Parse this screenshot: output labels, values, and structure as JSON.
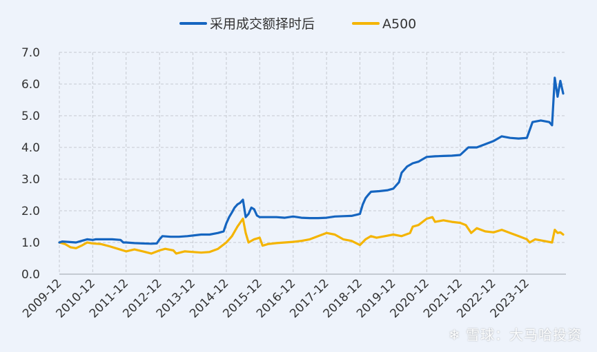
{
  "chart_data": {
    "type": "line",
    "title": "",
    "xlabel": "",
    "ylabel": "",
    "ylim": [
      0,
      7
    ],
    "yticks": [
      "0.0",
      "1.0",
      "2.0",
      "3.0",
      "4.0",
      "5.0",
      "6.0",
      "7.0"
    ],
    "x_tick_labels": [
      "2009-12",
      "2010-12",
      "2011-12",
      "2012-12",
      "2013-12",
      "2014-12",
      "2015-12",
      "2016-12",
      "2017-12",
      "2018-12",
      "2019-12",
      "2020-12",
      "2021-12",
      "2022-12",
      "2023-12"
    ],
    "grid": true,
    "legend_position": "top-center",
    "series": [
      {
        "name": "采用成交额择时后",
        "color": "#1565c0",
        "points": [
          [
            "2009-12",
            1.0
          ],
          [
            "2010-01",
            1.03
          ],
          [
            "2010-03",
            1.02
          ],
          [
            "2010-06",
            1.0
          ],
          [
            "2010-08",
            1.05
          ],
          [
            "2010-10",
            1.1
          ],
          [
            "2010-12",
            1.08
          ],
          [
            "2011-01",
            1.1
          ],
          [
            "2011-04",
            1.1
          ],
          [
            "2011-07",
            1.1
          ],
          [
            "2011-10",
            1.08
          ],
          [
            "2011-11",
            1.0
          ],
          [
            "2011-12",
            1.0
          ],
          [
            "2012-03",
            0.98
          ],
          [
            "2012-06",
            0.97
          ],
          [
            "2012-09",
            0.96
          ],
          [
            "2012-11",
            0.97
          ],
          [
            "2012-12",
            1.1
          ],
          [
            "2013-01",
            1.2
          ],
          [
            "2013-04",
            1.18
          ],
          [
            "2013-07",
            1.18
          ],
          [
            "2013-10",
            1.2
          ],
          [
            "2013-12",
            1.22
          ],
          [
            "2014-03",
            1.25
          ],
          [
            "2014-06",
            1.25
          ],
          [
            "2014-09",
            1.3
          ],
          [
            "2014-11",
            1.35
          ],
          [
            "2014-12",
            1.6
          ],
          [
            "2015-01",
            1.8
          ],
          [
            "2015-02",
            1.95
          ],
          [
            "2015-03",
            2.1
          ],
          [
            "2015-04",
            2.2
          ],
          [
            "2015-05",
            2.25
          ],
          [
            "2015-06",
            2.35
          ],
          [
            "2015-07",
            1.8
          ],
          [
            "2015-08",
            1.9
          ],
          [
            "2015-09",
            2.1
          ],
          [
            "2015-10",
            2.05
          ],
          [
            "2015-11",
            1.85
          ],
          [
            "2015-12",
            1.8
          ],
          [
            "2016-03",
            1.8
          ],
          [
            "2016-06",
            1.8
          ],
          [
            "2016-09",
            1.78
          ],
          [
            "2016-12",
            1.82
          ],
          [
            "2017-03",
            1.78
          ],
          [
            "2017-06",
            1.77
          ],
          [
            "2017-09",
            1.77
          ],
          [
            "2017-12",
            1.78
          ],
          [
            "2018-03",
            1.82
          ],
          [
            "2018-06",
            1.83
          ],
          [
            "2018-09",
            1.84
          ],
          [
            "2018-12",
            1.9
          ],
          [
            "2019-01",
            2.2
          ],
          [
            "2019-02",
            2.4
          ],
          [
            "2019-03",
            2.5
          ],
          [
            "2019-04",
            2.6
          ],
          [
            "2019-07",
            2.62
          ],
          [
            "2019-10",
            2.65
          ],
          [
            "2019-12",
            2.7
          ],
          [
            "2020-01",
            2.8
          ],
          [
            "2020-02",
            2.9
          ],
          [
            "2020-03",
            3.2
          ],
          [
            "2020-05",
            3.4
          ],
          [
            "2020-07",
            3.5
          ],
          [
            "2020-09",
            3.55
          ],
          [
            "2020-10",
            3.6
          ],
          [
            "2020-12",
            3.7
          ],
          [
            "2021-03",
            3.72
          ],
          [
            "2021-06",
            3.73
          ],
          [
            "2021-09",
            3.74
          ],
          [
            "2021-12",
            3.76
          ],
          [
            "2022-03",
            4.0
          ],
          [
            "2022-06",
            4.0
          ],
          [
            "2022-09",
            4.1
          ],
          [
            "2022-12",
            4.2
          ],
          [
            "2023-03",
            4.35
          ],
          [
            "2023-06",
            4.3
          ],
          [
            "2023-09",
            4.28
          ],
          [
            "2023-12",
            4.3
          ],
          [
            "2024-02",
            4.8
          ],
          [
            "2024-05",
            4.85
          ],
          [
            "2024-08",
            4.8
          ],
          [
            "2024-09",
            4.7
          ],
          [
            "2024-10",
            6.2
          ],
          [
            "2024-11",
            5.6
          ],
          [
            "2024-12",
            6.1
          ],
          [
            "2025-01",
            5.7
          ]
        ]
      },
      {
        "name": "A500",
        "color": "#f4b400",
        "points": [
          [
            "2009-12",
            1.0
          ],
          [
            "2010-02",
            0.95
          ],
          [
            "2010-04",
            0.85
          ],
          [
            "2010-06",
            0.82
          ],
          [
            "2010-08",
            0.9
          ],
          [
            "2010-10",
            1.0
          ],
          [
            "2010-12",
            0.97
          ],
          [
            "2011-03",
            0.95
          ],
          [
            "2011-06",
            0.88
          ],
          [
            "2011-09",
            0.8
          ],
          [
            "2011-12",
            0.72
          ],
          [
            "2012-03",
            0.78
          ],
          [
            "2012-06",
            0.72
          ],
          [
            "2012-09",
            0.65
          ],
          [
            "2012-12",
            0.75
          ],
          [
            "2013-02",
            0.8
          ],
          [
            "2013-05",
            0.75
          ],
          [
            "2013-06",
            0.65
          ],
          [
            "2013-09",
            0.72
          ],
          [
            "2013-12",
            0.7
          ],
          [
            "2014-03",
            0.68
          ],
          [
            "2014-06",
            0.7
          ],
          [
            "2014-09",
            0.8
          ],
          [
            "2014-12",
            1.0
          ],
          [
            "2015-02",
            1.2
          ],
          [
            "2015-04",
            1.5
          ],
          [
            "2015-06",
            1.75
          ],
          [
            "2015-07",
            1.3
          ],
          [
            "2015-08",
            1.0
          ],
          [
            "2015-10",
            1.1
          ],
          [
            "2015-12",
            1.15
          ],
          [
            "2016-01",
            0.9
          ],
          [
            "2016-03",
            0.95
          ],
          [
            "2016-06",
            0.98
          ],
          [
            "2016-09",
            1.0
          ],
          [
            "2016-12",
            1.02
          ],
          [
            "2017-03",
            1.05
          ],
          [
            "2017-06",
            1.1
          ],
          [
            "2017-09",
            1.2
          ],
          [
            "2017-12",
            1.3
          ],
          [
            "2018-03",
            1.25
          ],
          [
            "2018-06",
            1.1
          ],
          [
            "2018-09",
            1.05
          ],
          [
            "2018-12",
            0.92
          ],
          [
            "2019-02",
            1.1
          ],
          [
            "2019-04",
            1.2
          ],
          [
            "2019-06",
            1.15
          ],
          [
            "2019-09",
            1.2
          ],
          [
            "2019-12",
            1.25
          ],
          [
            "2020-03",
            1.2
          ],
          [
            "2020-06",
            1.3
          ],
          [
            "2020-07",
            1.5
          ],
          [
            "2020-09",
            1.55
          ],
          [
            "2020-12",
            1.75
          ],
          [
            "2021-02",
            1.8
          ],
          [
            "2021-03",
            1.65
          ],
          [
            "2021-06",
            1.7
          ],
          [
            "2021-09",
            1.65
          ],
          [
            "2021-12",
            1.62
          ],
          [
            "2022-02",
            1.55
          ],
          [
            "2022-04",
            1.3
          ],
          [
            "2022-06",
            1.45
          ],
          [
            "2022-09",
            1.35
          ],
          [
            "2022-12",
            1.32
          ],
          [
            "2023-03",
            1.4
          ],
          [
            "2023-06",
            1.3
          ],
          [
            "2023-09",
            1.2
          ],
          [
            "2023-12",
            1.1
          ],
          [
            "2024-01",
            1.0
          ],
          [
            "2024-03",
            1.1
          ],
          [
            "2024-06",
            1.05
          ],
          [
            "2024-09",
            1.0
          ],
          [
            "2024-10",
            1.4
          ],
          [
            "2024-11",
            1.3
          ],
          [
            "2024-12",
            1.32
          ],
          [
            "2025-01",
            1.25
          ]
        ]
      }
    ]
  },
  "watermark": "雪球：大马哈投资"
}
